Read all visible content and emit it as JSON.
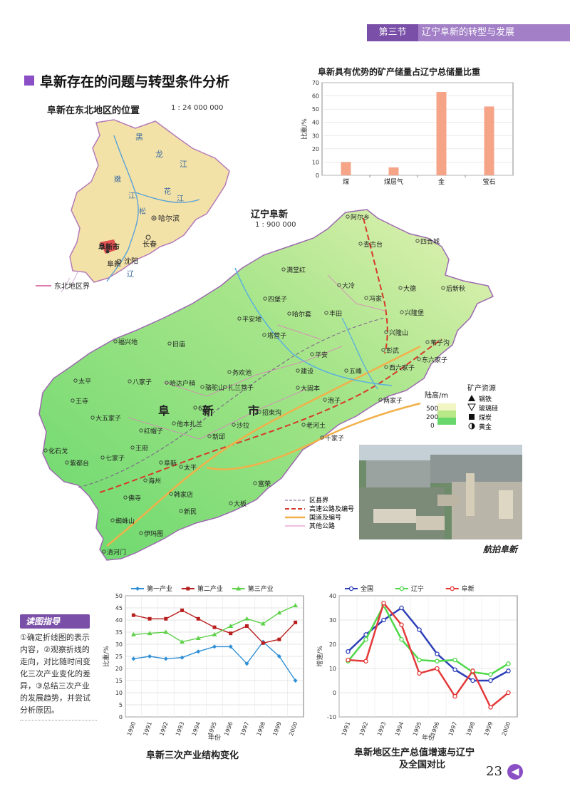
{
  "header": {
    "section": "第三节",
    "title": "辽宁阜新的转型与发展"
  },
  "section_title": "阜新存在的问题与转型条件分析",
  "inset_map": {
    "title": "阜新在东北地区的位置",
    "scale": "1 : 24 000 000",
    "labels": [
      "黑",
      "龙",
      "江",
      "嫩",
      "江",
      "松",
      "花",
      "江",
      "哈尔滨",
      "长春",
      "阜新市",
      "阜新",
      "沈阳",
      "辽"
    ],
    "legend": "东北地区界"
  },
  "main_map": {
    "title": "辽宁阜新",
    "scale": "1 : 900 000",
    "city_label": [
      "阜",
      "新",
      "市"
    ],
    "places": [
      "阿尔乡",
      "查古台",
      "四合城",
      "满堂红",
      "大冷",
      "大德",
      "后新秋",
      "四堡子",
      "冯家",
      "平安地",
      "哈尔套",
      "丰田",
      "兴隆堡",
      "塔营子",
      "兴隆山",
      "福兴地",
      "旧庙",
      "平安",
      "彰武",
      "苇子沟",
      "东六家子",
      "太平",
      "八家子",
      "哈达户稍",
      "务欢池",
      "建设",
      "五峰",
      "西六家子",
      "骆驼山",
      "626",
      "扎兰营子",
      "大固本",
      "两家子",
      "王寺",
      "大五家子",
      "他本扎兰",
      "招束沟",
      "泡子",
      "红帽子",
      "沙拉",
      "老河土",
      "化石戈",
      "七家子",
      "王府",
      "新邱",
      "十家子",
      "紫都台",
      "阜新",
      "太平",
      "海州",
      "清河门",
      "佛寺",
      "韩家店",
      "富荣",
      "新民",
      "大板",
      "蜘蛛山",
      "伊玛图"
    ],
    "elevation_legend": {
      "title": "陆高/m",
      "ticks": [
        "500",
        "200",
        "0"
      ]
    },
    "mineral_legend": {
      "title": "矿产资源",
      "items": [
        "钢铁",
        "玻璃硅",
        "煤炭",
        "黄金"
      ]
    },
    "road_legend": [
      "区县界",
      "高速公路及编号",
      "国道及编号",
      "其他公路"
    ],
    "shield_labels": [
      "101",
      "102",
      "304"
    ]
  },
  "photo_caption": "航拍阜新",
  "chart_data": [
    {
      "type": "bar",
      "title": "阜新具有优势的矿产储量占辽宁总储量比重",
      "categories": [
        "煤",
        "煤层气",
        "金",
        "萤石"
      ],
      "values": [
        10,
        6,
        63,
        52
      ],
      "ylabel": "比重/%",
      "ylim": [
        0,
        70
      ],
      "yticks": [
        0,
        10,
        20,
        30,
        40,
        50,
        60,
        70
      ],
      "color": "#f6a488"
    },
    {
      "type": "line",
      "title": "阜新三次产业结构变化",
      "x": [
        "1990",
        "1991",
        "1992",
        "1993",
        "1994",
        "1995",
        "1996",
        "1997",
        "1998",
        "1999",
        "2000"
      ],
      "xlabel": "年份",
      "ylabel": "比重/%",
      "ylim": [
        0,
        50
      ],
      "yticks": [
        0,
        5,
        10,
        15,
        20,
        25,
        30,
        35,
        40,
        45,
        50
      ],
      "series": [
        {
          "name": "第一产业",
          "color": "#2f8fd6",
          "marker": "diamond",
          "values": [
            24,
            25,
            24,
            24.5,
            27,
            29,
            29,
            22,
            31,
            25,
            15
          ]
        },
        {
          "name": "第二产业",
          "color": "#b8201f",
          "marker": "square",
          "values": [
            42,
            40.5,
            40.5,
            44,
            40.5,
            37,
            34.5,
            37.5,
            30.5,
            32,
            39
          ]
        },
        {
          "name": "第三产业",
          "color": "#5fd24a",
          "marker": "triangle",
          "values": [
            34,
            34.5,
            35,
            31,
            32.5,
            34,
            37.5,
            40.5,
            38.5,
            43,
            46
          ]
        }
      ],
      "legend": "top"
    },
    {
      "type": "line",
      "title": "阜新地区生产总值增速与辽宁及全国对比",
      "x": [
        "1991",
        "1992",
        "1993",
        "1994",
        "1995",
        "1996",
        "1997",
        "1998",
        "1999",
        "2000"
      ],
      "xlabel": "年份",
      "ylabel": "增速/%",
      "ylim": [
        -10,
        40
      ],
      "yticks": [
        -10,
        0,
        10,
        20,
        30,
        40
      ],
      "series": [
        {
          "name": "全国",
          "color": "#2d3fb8",
          "marker": "circle",
          "values": [
            17,
            24,
            30,
            35,
            26,
            16,
            9.5,
            5,
            5,
            9
          ]
        },
        {
          "name": "辽宁",
          "color": "#4ed84a",
          "marker": "circle",
          "values": [
            13,
            22,
            36,
            22,
            13.5,
            13,
            13.5,
            8.5,
            7.5,
            12
          ]
        },
        {
          "name": "阜新",
          "color": "#e33a3a",
          "marker": "circle",
          "values": [
            13.5,
            13,
            37,
            28,
            8,
            10,
            -1.5,
            9,
            -6,
            0
          ]
        }
      ],
      "legend": "top"
    }
  ],
  "chart_titles": {
    "bar": "阜新具有优势的矿产储量占辽宁总储量比重",
    "line1": "阜新三次产业结构变化",
    "line2a": "阜新地区生产总值增速与辽宁",
    "line2b": "及全国对比"
  },
  "guide": {
    "title": "读图指导",
    "text": "①确定折线图的表示内容，②观察折线的走向，对比随时间变化三次产业变化的差异，③总结三次产业的发展趋势，并尝试分析原因。"
  },
  "page_number": "23",
  "colors": {
    "accent": "#8a4fc4",
    "header": "#a27fc7",
    "land_low": "#69d86c",
    "land_high": "#f2f5c4"
  }
}
